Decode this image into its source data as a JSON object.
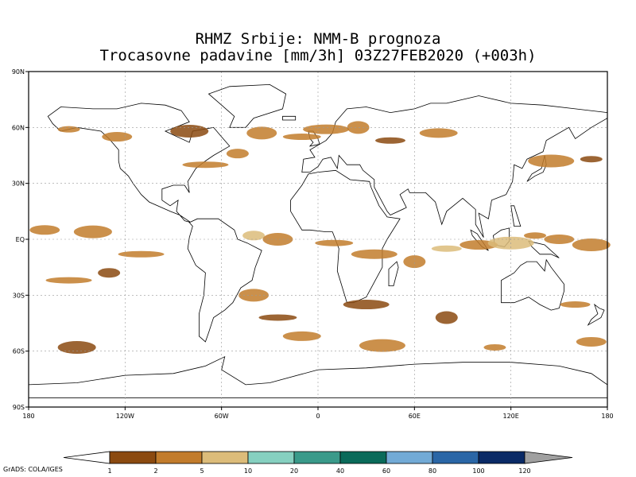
{
  "header": {
    "title_line1": "RHMZ Srbije: NMM-B prognoza",
    "title_line2": "Trocasovne padavine [mm/3h] 03Z27FEB2020 (+003h)"
  },
  "map": {
    "projection": "latlon",
    "lon_range": [
      -180,
      180
    ],
    "lat_range": [
      -90,
      90
    ],
    "lat_ticks": [
      {
        "value": 90,
        "label": "90N"
      },
      {
        "value": 60,
        "label": "60N"
      },
      {
        "value": 30,
        "label": "30N"
      },
      {
        "value": 0,
        "label": "EQ"
      },
      {
        "value": -30,
        "label": "30S"
      },
      {
        "value": -60,
        "label": "60S"
      },
      {
        "value": -90,
        "label": "90S"
      }
    ],
    "lon_ticks": [
      {
        "value": -180,
        "label": "180"
      },
      {
        "value": -120,
        "label": "120W"
      },
      {
        "value": -60,
        "label": "60W"
      },
      {
        "value": 0,
        "label": "0"
      },
      {
        "value": 60,
        "label": "60E"
      },
      {
        "value": 120,
        "label": "120E"
      },
      {
        "value": 180,
        "label": "180"
      }
    ],
    "grid": true,
    "land_color": "#ffffff",
    "outline_color": "#000000"
  },
  "precip_regions": [
    {
      "lon": -155,
      "lat": 59,
      "level": 2
    },
    {
      "lon": -125,
      "lat": 55,
      "level": 2
    },
    {
      "lon": -80,
      "lat": 58,
      "level": 1
    },
    {
      "lon": -70,
      "lat": 40,
      "level": 2
    },
    {
      "lon": -50,
      "lat": 46,
      "level": 2
    },
    {
      "lon": -35,
      "lat": 57,
      "level": 2
    },
    {
      "lon": -10,
      "lat": 55,
      "level": 2
    },
    {
      "lon": 5,
      "lat": 59,
      "level": 2
    },
    {
      "lon": 25,
      "lat": 60,
      "level": 2
    },
    {
      "lon": 45,
      "lat": 53,
      "level": 1
    },
    {
      "lon": 75,
      "lat": 57,
      "level": 2
    },
    {
      "lon": 145,
      "lat": 42,
      "level": 2
    },
    {
      "lon": 170,
      "lat": 43,
      "level": 1
    },
    {
      "lon": -170,
      "lat": 5,
      "level": 2
    },
    {
      "lon": -140,
      "lat": 4,
      "level": 2
    },
    {
      "lon": -110,
      "lat": -8,
      "level": 2
    },
    {
      "lon": -40,
      "lat": 2,
      "level": 3
    },
    {
      "lon": -25,
      "lat": 0,
      "level": 2
    },
    {
      "lon": 10,
      "lat": -2,
      "level": 2
    },
    {
      "lon": 35,
      "lat": -8,
      "level": 2
    },
    {
      "lon": 60,
      "lat": -12,
      "level": 2
    },
    {
      "lon": 80,
      "lat": -5,
      "level": 3
    },
    {
      "lon": 100,
      "lat": -3,
      "level": 2
    },
    {
      "lon": 120,
      "lat": -2,
      "level": 3
    },
    {
      "lon": 135,
      "lat": 2,
      "level": 2
    },
    {
      "lon": 150,
      "lat": 0,
      "level": 2
    },
    {
      "lon": 170,
      "lat": -3,
      "level": 2
    },
    {
      "lon": -155,
      "lat": -22,
      "level": 2
    },
    {
      "lon": -130,
      "lat": -18,
      "level": 1
    },
    {
      "lon": -40,
      "lat": -30,
      "level": 2
    },
    {
      "lon": -25,
      "lat": -42,
      "level": 1
    },
    {
      "lon": 30,
      "lat": -35,
      "level": 1
    },
    {
      "lon": 80,
      "lat": -42,
      "level": 1
    },
    {
      "lon": 160,
      "lat": -35,
      "level": 2
    },
    {
      "lon": -10,
      "lat": -52,
      "level": 2
    },
    {
      "lon": 40,
      "lat": -57,
      "level": 2
    },
    {
      "lon": 110,
      "lat": -58,
      "level": 2
    },
    {
      "lon": 170,
      "lat": -55,
      "level": 2
    },
    {
      "lon": -150,
      "lat": -58,
      "level": 1
    }
  ],
  "colorbar": {
    "colors": [
      "#ffffff",
      "#8b4a10",
      "#c27c2c",
      "#dcbc7a",
      "#86d0c0",
      "#3a9a8a",
      "#0a6a5a",
      "#72aad6",
      "#2a66a6",
      "#0a2a66",
      "#a0a0a0"
    ],
    "labels": [
      "1",
      "2",
      "5",
      "10",
      "20",
      "40",
      "60",
      "80",
      "100",
      "120"
    ]
  },
  "footer": {
    "credit": "GrADS: COLA/IGES"
  }
}
